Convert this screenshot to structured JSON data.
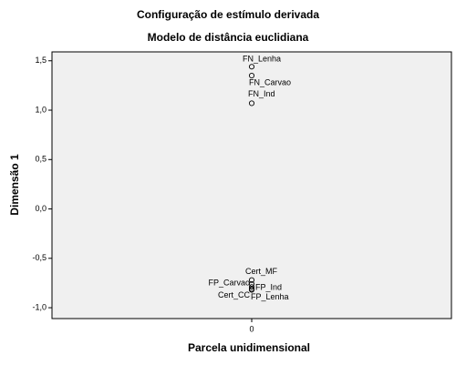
{
  "chart_data": {
    "type": "scatter",
    "title": "Configuração de estímulo derivada",
    "subtitle": "Modelo de distância euclidiana",
    "x_label": "Parcela unidimensional",
    "y_label": "Dimensão 1",
    "point_labels": [
      "FN_Lenha",
      "FN_Carvao",
      "FN_Ind",
      "Cert_MF",
      "FP_Carvao",
      "FP_Ind",
      "Cert_CC",
      "FP_Lenha"
    ],
    "x": [
      0,
      0,
      0,
      0,
      0,
      0,
      0,
      0
    ],
    "values": [
      1.44,
      1.35,
      1.07,
      -0.72,
      -0.76,
      -0.79,
      -0.81,
      -0.82
    ],
    "xlim": [
      -1,
      1
    ],
    "xticks": [
      0
    ],
    "ylim": [
      -1.11,
      1.59
    ],
    "yticks": [
      {
        "value": -1.0,
        "label": "-1,0"
      },
      {
        "value": -0.5,
        "label": "-0,5"
      },
      {
        "value": 0.0,
        "label": "0,0"
      },
      {
        "value": 0.5,
        "label": "0,5"
      },
      {
        "value": 1.0,
        "label": "1,0"
      },
      {
        "value": 1.5,
        "label": "1,5"
      }
    ]
  }
}
